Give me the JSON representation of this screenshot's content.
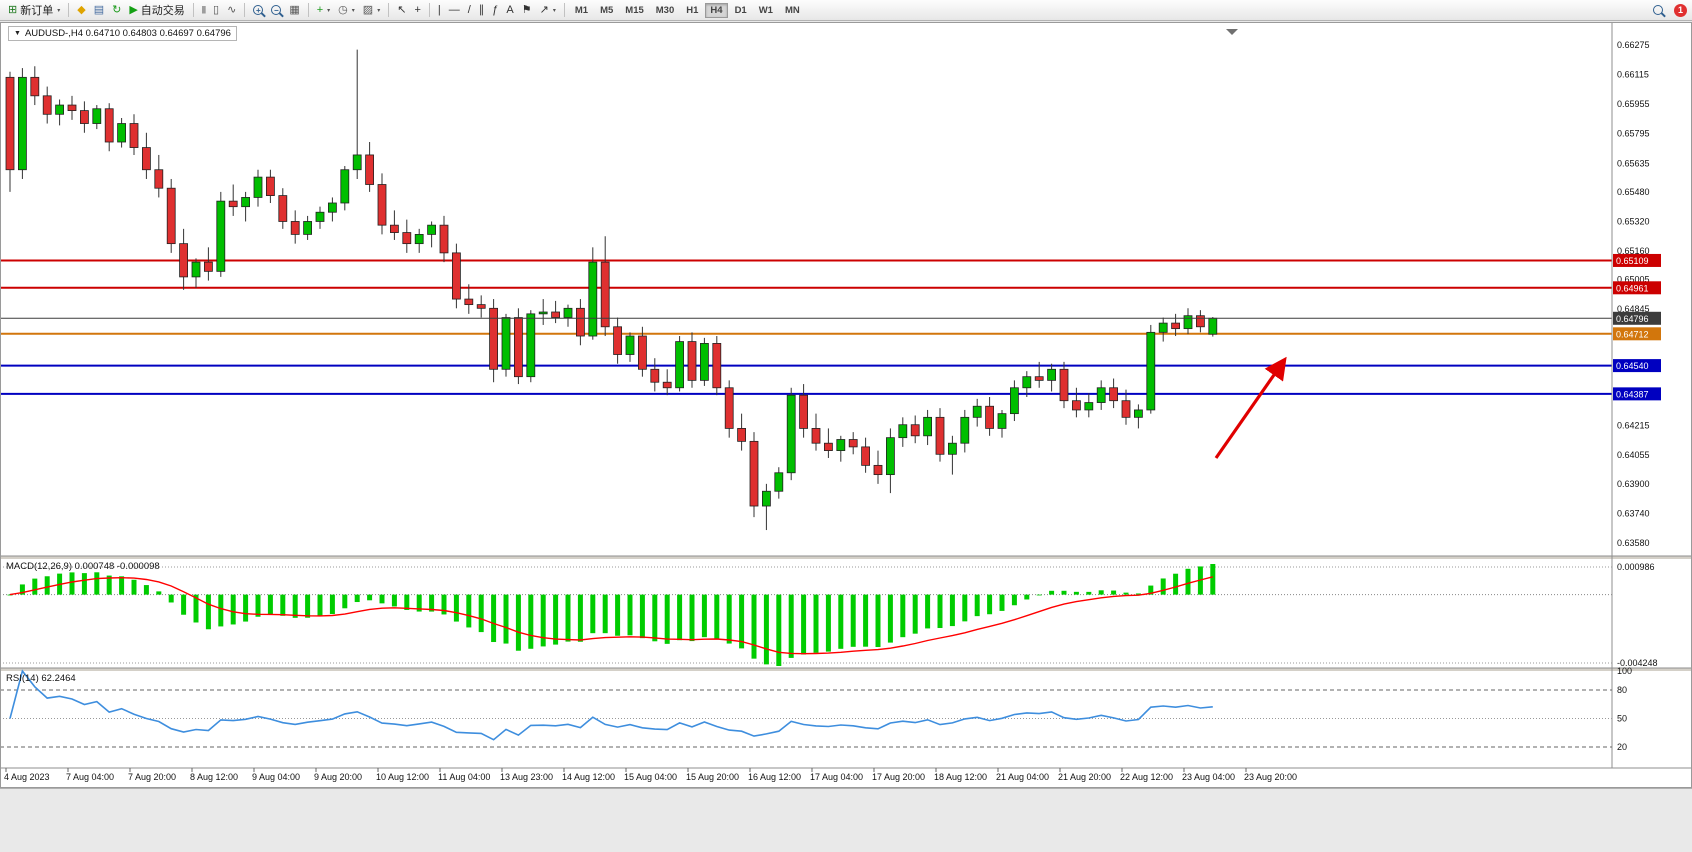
{
  "toolbar": {
    "items": [
      {
        "type": "btn",
        "name": "new-order-button",
        "icon": "new-order-icon",
        "glyph": "⊞",
        "color": "#1F7A1F",
        "label": "新订单",
        "caret": true
      },
      {
        "type": "sep"
      },
      {
        "type": "btn",
        "name": "metaeditor-button",
        "icon": "metaeditor-icon",
        "glyph": "◆",
        "color": "#DFA400"
      },
      {
        "type": "btn",
        "name": "chart-profiles-button",
        "icon": "profiles-icon",
        "glyph": "▤",
        "color": "#41699E"
      },
      {
        "type": "btn",
        "name": "refresh-button",
        "icon": "refresh-icon",
        "glyph": "↻",
        "color": "#1D9B1D"
      },
      {
        "type": "btn",
        "name": "autotrading-button",
        "icon": "autotrading-play-icon",
        "glyph": "▶",
        "color": "#14A014",
        "label": "自动交易"
      },
      {
        "type": "sep"
      },
      {
        "type": "btn",
        "name": "bar-chart-type-button",
        "icon": "bar-chart-icon",
        "glyph": "|||",
        "color": "#555555",
        "small": true
      },
      {
        "type": "btn",
        "name": "candlestick-type-button",
        "icon": "candlestick-icon",
        "glyph": "▯",
        "color": "#555555"
      },
      {
        "type": "btn",
        "name": "line-chart-type-button",
        "icon": "line-chart-icon",
        "glyph": "∿",
        "color": "#555555"
      },
      {
        "type": "sep"
      },
      {
        "type": "zoom",
        "name": "zoom-in-button",
        "icon": "zoom-in-icon",
        "sign": "+"
      },
      {
        "type": "zoom",
        "name": "zoom-out-button",
        "icon": "zoom-out-icon",
        "sign": "−"
      },
      {
        "type": "btn",
        "name": "tile-windows-button",
        "icon": "tile-windows-icon",
        "glyph": "▦",
        "color": "#555555"
      },
      {
        "type": "sep"
      },
      {
        "type": "btn",
        "name": "add-indicator-button",
        "icon": "add-indicator-icon",
        "glyph": "+",
        "color": "#1D9B1D",
        "caret": true
      },
      {
        "type": "btn",
        "name": "period-selector-button",
        "icon": "clock-icon",
        "glyph": "◷",
        "color": "#555555",
        "caret": true
      },
      {
        "type": "btn",
        "name": "templates-button",
        "icon": "template-icon",
        "glyph": "▨",
        "color": "#555555",
        "caret": true
      },
      {
        "type": "sep"
      },
      {
        "type": "btn",
        "name": "cursor-button",
        "icon": "cursor-icon",
        "glyph": "↖",
        "color": "#333333"
      },
      {
        "type": "btn",
        "name": "crosshair-button",
        "icon": "crosshair-icon",
        "glyph": "+",
        "color": "#333333"
      },
      {
        "type": "sep"
      },
      {
        "type": "btn",
        "name": "vertical-line-button",
        "icon": "vertical-line-icon",
        "glyph": "|",
        "color": "#333333"
      },
      {
        "type": "btn",
        "name": "horizontal-line-button",
        "icon": "horizontal-line-icon",
        "glyph": "—",
        "color": "#333333"
      },
      {
        "type": "btn",
        "name": "trendline-button",
        "icon": "trendline-icon",
        "glyph": "/",
        "color": "#333333"
      },
      {
        "type": "btn",
        "name": "channel-button",
        "icon": "channel-icon",
        "glyph": "∥",
        "color": "#333333"
      },
      {
        "type": "btn",
        "name": "fibonacci-button",
        "icon": "fibonacci-icon",
        "glyph": "ƒ",
        "color": "#333333"
      },
      {
        "type": "btn",
        "name": "text-button",
        "icon": "text-icon",
        "glyph": "A",
        "color": "#333333"
      },
      {
        "type": "btn",
        "name": "label-button",
        "icon": "flag-icon",
        "glyph": "⚑",
        "color": "#333333"
      },
      {
        "type": "btn",
        "name": "arrows-button",
        "icon": "arrow-objects-icon",
        "glyph": "↗",
        "color": "#333333",
        "caret": true
      },
      {
        "type": "sep"
      }
    ],
    "timeframes": [
      "M1",
      "M5",
      "M15",
      "M30",
      "H1",
      "H4",
      "D1",
      "W1",
      "MN"
    ],
    "active_timeframe": "H4",
    "notification_count": "1"
  },
  "chart": {
    "title": "AUDUSD-,H4 0.64710 0.64803 0.64697 0.64796",
    "symbol": "AUDUSD-",
    "timeframe": "H4",
    "open": "0.64710",
    "high": "0.64803",
    "low": "0.64697",
    "close": "0.64796",
    "dropdown_glyph": "▼"
  },
  "chart_data": {
    "type": "candlestick",
    "bull_color": "#00BE00",
    "bear_color": "#DF3030",
    "wick_color": "#333333",
    "candles": [
      [
        0.661,
        0.6613,
        0.6548,
        0.656
      ],
      [
        0.656,
        0.6615,
        0.6555,
        0.661
      ],
      [
        0.661,
        0.6616,
        0.6595,
        0.66
      ],
      [
        0.66,
        0.6605,
        0.6585,
        0.659
      ],
      [
        0.659,
        0.6598,
        0.6584,
        0.6595
      ],
      [
        0.6595,
        0.66,
        0.6587,
        0.6592
      ],
      [
        0.6592,
        0.6597,
        0.658,
        0.6585
      ],
      [
        0.6585,
        0.6595,
        0.6582,
        0.6593
      ],
      [
        0.6593,
        0.6596,
        0.657,
        0.6575
      ],
      [
        0.6575,
        0.6588,
        0.6572,
        0.6585
      ],
      [
        0.6585,
        0.659,
        0.6568,
        0.6572
      ],
      [
        0.6572,
        0.658,
        0.6555,
        0.656
      ],
      [
        0.656,
        0.6568,
        0.6545,
        0.655
      ],
      [
        0.655,
        0.6555,
        0.6515,
        0.652
      ],
      [
        0.652,
        0.6528,
        0.6495,
        0.6502
      ],
      [
        0.6502,
        0.6512,
        0.6496,
        0.651
      ],
      [
        0.651,
        0.6518,
        0.65,
        0.6505
      ],
      [
        0.6505,
        0.6548,
        0.6502,
        0.6543
      ],
      [
        0.6543,
        0.6552,
        0.6535,
        0.654
      ],
      [
        0.654,
        0.6548,
        0.6532,
        0.6545
      ],
      [
        0.6545,
        0.656,
        0.654,
        0.6556
      ],
      [
        0.6556,
        0.656,
        0.6542,
        0.6546
      ],
      [
        0.6546,
        0.655,
        0.6528,
        0.6532
      ],
      [
        0.6532,
        0.6538,
        0.652,
        0.6525
      ],
      [
        0.6525,
        0.6535,
        0.6522,
        0.6532
      ],
      [
        0.6532,
        0.654,
        0.6528,
        0.6537
      ],
      [
        0.6537,
        0.6545,
        0.6532,
        0.6542
      ],
      [
        0.6542,
        0.6562,
        0.6538,
        0.656
      ],
      [
        0.656,
        0.6625,
        0.6555,
        0.6568
      ],
      [
        0.6568,
        0.6575,
        0.6548,
        0.6552
      ],
      [
        0.6552,
        0.6558,
        0.6525,
        0.653
      ],
      [
        0.653,
        0.6538,
        0.6522,
        0.6526
      ],
      [
        0.6526,
        0.6533,
        0.6515,
        0.652
      ],
      [
        0.652,
        0.6528,
        0.6515,
        0.6525
      ],
      [
        0.6525,
        0.6532,
        0.6518,
        0.653
      ],
      [
        0.653,
        0.6535,
        0.651,
        0.6515
      ],
      [
        0.6515,
        0.652,
        0.6485,
        0.649
      ],
      [
        0.649,
        0.6498,
        0.6482,
        0.6487
      ],
      [
        0.6487,
        0.6492,
        0.648,
        0.6485
      ],
      [
        0.6485,
        0.649,
        0.6445,
        0.6452
      ],
      [
        0.6452,
        0.6482,
        0.6448,
        0.648
      ],
      [
        0.648,
        0.6485,
        0.6444,
        0.6448
      ],
      [
        0.6448,
        0.6484,
        0.6445,
        0.6482
      ],
      [
        0.6482,
        0.649,
        0.6476,
        0.6483
      ],
      [
        0.6483,
        0.6489,
        0.6477,
        0.648
      ],
      [
        0.648,
        0.6487,
        0.6475,
        0.6485
      ],
      [
        0.6485,
        0.649,
        0.6465,
        0.647
      ],
      [
        0.647,
        0.6518,
        0.6468,
        0.651
      ],
      [
        0.651,
        0.6524,
        0.647,
        0.6475
      ],
      [
        0.6475,
        0.648,
        0.6455,
        0.646
      ],
      [
        0.646,
        0.6472,
        0.6456,
        0.647
      ],
      [
        0.647,
        0.6475,
        0.6448,
        0.6452
      ],
      [
        0.6452,
        0.6458,
        0.644,
        0.6445
      ],
      [
        0.6445,
        0.6452,
        0.6438,
        0.6442
      ],
      [
        0.6442,
        0.647,
        0.644,
        0.6467
      ],
      [
        0.6467,
        0.6472,
        0.6442,
        0.6446
      ],
      [
        0.6446,
        0.6469,
        0.6443,
        0.6466
      ],
      [
        0.6466,
        0.647,
        0.6438,
        0.6442
      ],
      [
        0.6442,
        0.6446,
        0.6415,
        0.642
      ],
      [
        0.642,
        0.6428,
        0.6408,
        0.6413
      ],
      [
        0.6413,
        0.6418,
        0.6372,
        0.6378
      ],
      [
        0.6378,
        0.639,
        0.6365,
        0.6386
      ],
      [
        0.6386,
        0.6399,
        0.6382,
        0.6396
      ],
      [
        0.6396,
        0.6442,
        0.6392,
        0.6438
      ],
      [
        0.6438,
        0.6444,
        0.6415,
        0.642
      ],
      [
        0.642,
        0.6428,
        0.6408,
        0.6412
      ],
      [
        0.6412,
        0.642,
        0.6404,
        0.6408
      ],
      [
        0.6408,
        0.6416,
        0.6402,
        0.6414
      ],
      [
        0.6414,
        0.6418,
        0.6406,
        0.641
      ],
      [
        0.641,
        0.6415,
        0.6396,
        0.64
      ],
      [
        0.64,
        0.6408,
        0.639,
        0.6395
      ],
      [
        0.6395,
        0.642,
        0.6385,
        0.6415
      ],
      [
        0.6415,
        0.6426,
        0.641,
        0.6422
      ],
      [
        0.6422,
        0.6427,
        0.6412,
        0.6416
      ],
      [
        0.6416,
        0.643,
        0.6411,
        0.6426
      ],
      [
        0.6426,
        0.6431,
        0.6402,
        0.6406
      ],
      [
        0.6406,
        0.6416,
        0.6395,
        0.6412
      ],
      [
        0.6412,
        0.643,
        0.6407,
        0.6426
      ],
      [
        0.6426,
        0.6436,
        0.6421,
        0.6432
      ],
      [
        0.6432,
        0.6437,
        0.6416,
        0.642
      ],
      [
        0.642,
        0.643,
        0.6415,
        0.6428
      ],
      [
        0.6428,
        0.6446,
        0.6424,
        0.6442
      ],
      [
        0.6442,
        0.6451,
        0.6437,
        0.6448
      ],
      [
        0.6448,
        0.6456,
        0.6442,
        0.6446
      ],
      [
        0.6446,
        0.6455,
        0.644,
        0.6452
      ],
      [
        0.6452,
        0.6456,
        0.6431,
        0.6435
      ],
      [
        0.6435,
        0.6442,
        0.6426,
        0.643
      ],
      [
        0.643,
        0.6439,
        0.6426,
        0.6434
      ],
      [
        0.6434,
        0.6446,
        0.643,
        0.6442
      ],
      [
        0.6442,
        0.6447,
        0.6431,
        0.6435
      ],
      [
        0.6435,
        0.6441,
        0.6422,
        0.6426
      ],
      [
        0.6426,
        0.6433,
        0.642,
        0.643
      ],
      [
        0.643,
        0.6476,
        0.6428,
        0.6472
      ],
      [
        0.6472,
        0.648,
        0.6467,
        0.6477
      ],
      [
        0.6477,
        0.6482,
        0.647,
        0.6474
      ],
      [
        0.6474,
        0.6485,
        0.6471,
        0.6481
      ],
      [
        0.6481,
        0.6484,
        0.6472,
        0.6475
      ],
      [
        0.6471,
        0.64803,
        0.64697,
        0.64796
      ]
    ],
    "price_axis_ticks": [
      "0.66275",
      "0.66115",
      "0.65955",
      "0.65795",
      "0.65635",
      "0.65480",
      "0.65320",
      "0.65160",
      "0.65005",
      "0.64845",
      "0.64695",
      "0.64215",
      "0.64055",
      "0.63900",
      "0.63740",
      "0.63580"
    ],
    "hlines": [
      {
        "name": "resistance-line-upper",
        "value": 0.65109,
        "label": "0.65109",
        "color": "#CC0000",
        "width": 2
      },
      {
        "name": "resistance-line-lower",
        "value": 0.64961,
        "label": "0.64961",
        "color": "#CC0000",
        "width": 2
      },
      {
        "name": "pivot-line-orange",
        "value": 0.64712,
        "label": "0.64712",
        "color": "#D2760C",
        "width": 2
      },
      {
        "name": "support-line-upper",
        "value": 0.6454,
        "label": "0.64540",
        "color": "#0000C0",
        "width": 2
      },
      {
        "name": "support-line-lower",
        "value": 0.64387,
        "label": "0.64387",
        "color": "#0000C0",
        "width": 2
      },
      {
        "name": "current-price-line",
        "value": 0.64796,
        "label": "0.64796",
        "color": "#3C3C3C",
        "width": 1,
        "type": "price"
      }
    ],
    "time_labels": [
      "4 Aug 2023",
      "7 Aug 04:00",
      "7 Aug 20:00",
      "8 Aug 12:00",
      "9 Aug 04:00",
      "9 Aug 20:00",
      "10 Aug 12:00",
      "11 Aug 04:00",
      "13 Aug 23:00",
      "14 Aug 12:00",
      "15 Aug 04:00",
      "15 Aug 20:00",
      "16 Aug 12:00",
      "17 Aug 04:00",
      "17 Aug 20:00",
      "18 Aug 12:00",
      "21 Aug 04:00",
      "21 Aug 20:00",
      "22 Aug 12:00",
      "23 Aug 04:00",
      "23 Aug 20:00"
    ],
    "indicators": {
      "macd": {
        "label": "MACD(12,26,9) 0.000748 -0.000098",
        "fast": 12,
        "slow": 26,
        "signal": 9,
        "value": "0.000748",
        "signal_value": "-0.000098",
        "axis_max": "0.000986",
        "axis_min": "-0.004248",
        "histogram_color": "#00CC00",
        "signal_color": "#FF0000"
      },
      "rsi": {
        "label": "RSI(14) 62.2464",
        "period": 14,
        "value": "62.2464",
        "axis_labels": [
          {
            "text": "100",
            "value": 100
          },
          {
            "text": "80",
            "value": 80
          },
          {
            "text": "50",
            "value": 50
          },
          {
            "text": "20",
            "value": 20
          }
        ],
        "level_lines": [
          80,
          50,
          20
        ],
        "line_color": "#3E8EDE"
      }
    },
    "annotations": {
      "arrow": {
        "name": "trend-arrow-up",
        "color": "#E00000"
      }
    }
  }
}
